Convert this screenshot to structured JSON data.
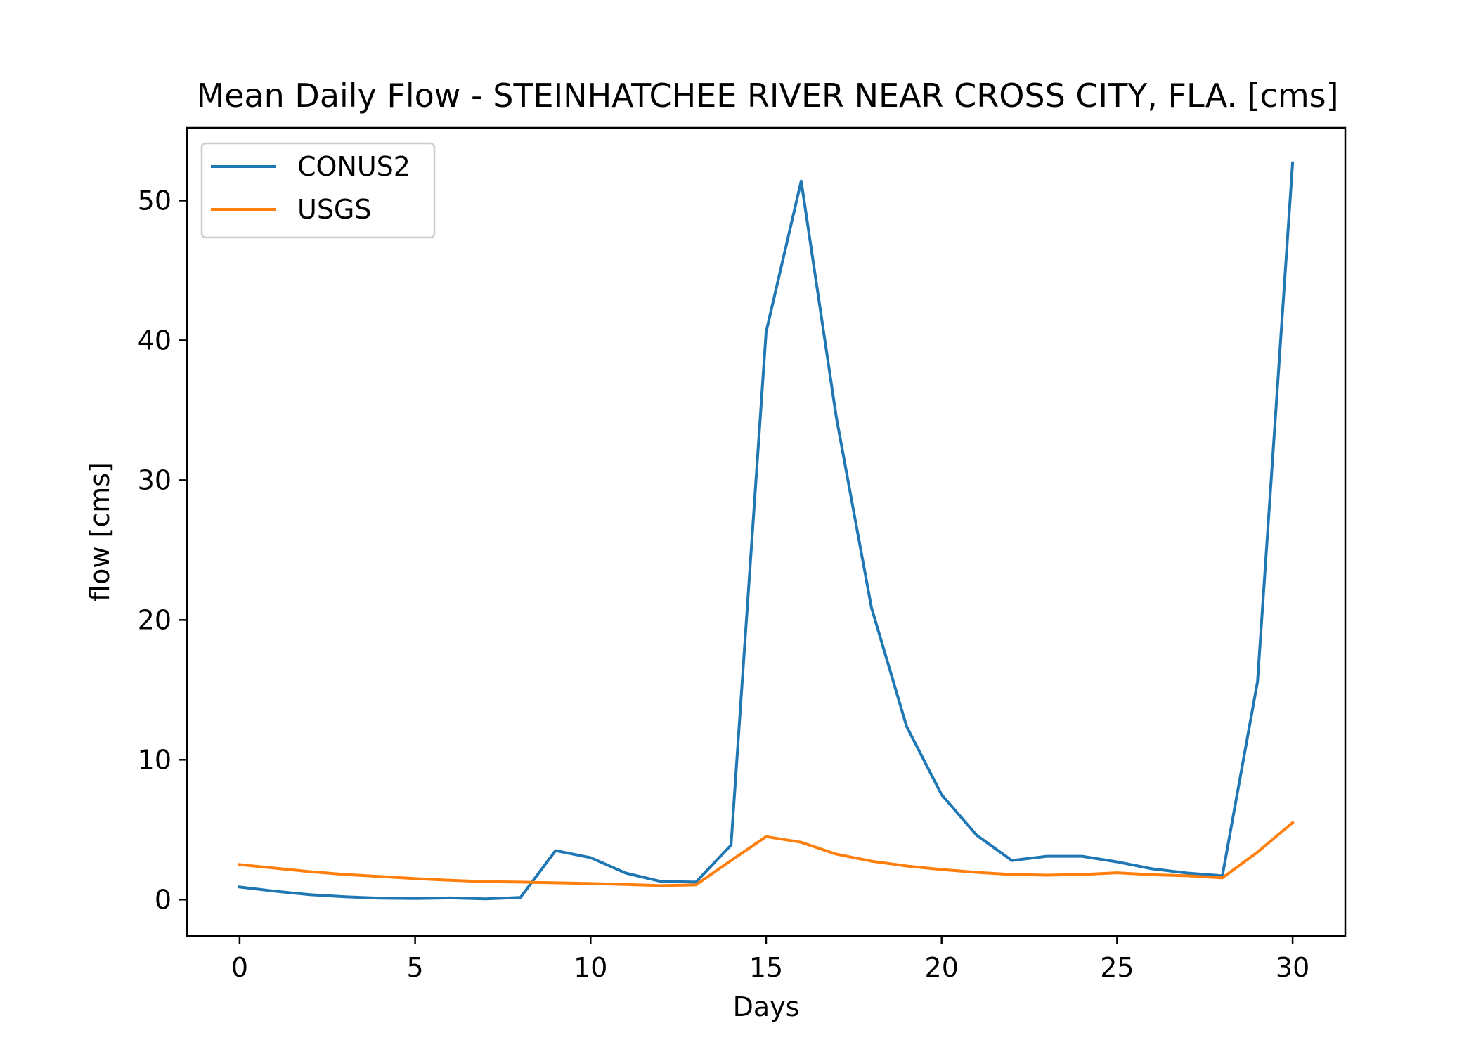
{
  "chart_data": {
    "type": "line",
    "title": "Mean Daily Flow - STEINHATCHEE RIVER NEAR CROSS CITY, FLA. [cms]",
    "xlabel": "Days",
    "ylabel": "flow [cms]",
    "xlim": [
      -1.5,
      31.5
    ],
    "ylim": [
      -2.6,
      55.2
    ],
    "xticks": [
      0,
      5,
      10,
      15,
      20,
      25,
      30
    ],
    "yticks": [
      0,
      10,
      20,
      30,
      40,
      50
    ],
    "grid": false,
    "legend_position": "top-left",
    "x": [
      0,
      1,
      2,
      3,
      4,
      5,
      6,
      7,
      8,
      9,
      10,
      11,
      12,
      13,
      14,
      15,
      16,
      17,
      18,
      19,
      20,
      21,
      22,
      23,
      24,
      25,
      26,
      27,
      28,
      29,
      30
    ],
    "series": [
      {
        "name": "CONUS2",
        "color": "#1f77b4",
        "values": [
          0.9,
          0.6,
          0.35,
          0.2,
          0.1,
          0.08,
          0.12,
          0.05,
          0.15,
          3.5,
          3.0,
          1.9,
          1.3,
          1.25,
          3.9,
          40.6,
          51.4,
          34.5,
          20.9,
          12.4,
          7.5,
          4.6,
          2.8,
          3.1,
          3.1,
          2.7,
          2.2,
          1.9,
          1.7,
          15.6,
          52.7
        ]
      },
      {
        "name": "USGS",
        "color": "#ff7f0e",
        "values": [
          2.5,
          2.25,
          2.0,
          1.8,
          1.65,
          1.5,
          1.38,
          1.28,
          1.25,
          1.2,
          1.15,
          1.08,
          1.0,
          1.05,
          2.8,
          4.5,
          4.1,
          3.25,
          2.75,
          2.4,
          2.15,
          1.95,
          1.8,
          1.75,
          1.8,
          1.92,
          1.78,
          1.7,
          1.55,
          3.4,
          5.5
        ]
      }
    ]
  }
}
